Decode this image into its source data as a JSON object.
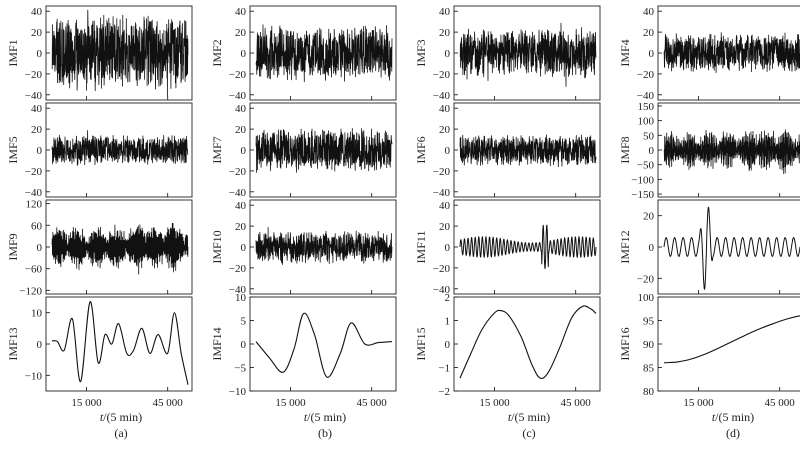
{
  "figure": {
    "xlabel": "t/(5 min)",
    "x_ticks": [
      "15 000",
      "45 000"
    ],
    "panel_labels": [
      "(a)",
      "(b)",
      "(c)",
      "(d)"
    ]
  },
  "chart_data": [
    {
      "type": "line",
      "col": 0,
      "row": 0,
      "ylabel": "IMF1",
      "ylim": [
        -45,
        45
      ],
      "yticks": [
        40,
        20,
        0,
        -20,
        -40
      ],
      "xticks": [
        15000,
        45000
      ],
      "series": [
        {
          "kind": "noise",
          "amp": 38,
          "cycles": 1800
        }
      ]
    },
    {
      "type": "line",
      "col": 1,
      "row": 0,
      "ylabel": "IMF2",
      "ylim": [
        -45,
        45
      ],
      "yticks": [
        40,
        20,
        0,
        -20,
        -40
      ],
      "xticks": [
        15000,
        45000
      ],
      "series": [
        {
          "kind": "noise",
          "amp": 28,
          "cycles": 1400
        }
      ]
    },
    {
      "type": "line",
      "col": 2,
      "row": 0,
      "ylabel": "IMF3",
      "ylim": [
        -45,
        45
      ],
      "yticks": [
        40,
        20,
        0,
        -20,
        -40
      ],
      "xticks": [
        15000,
        45000
      ],
      "series": [
        {
          "kind": "noise",
          "amp": 25,
          "cycles": 1000
        }
      ]
    },
    {
      "type": "line",
      "col": 3,
      "row": 0,
      "ylabel": "IMF4",
      "ylim": [
        -45,
        45
      ],
      "yticks": [
        40,
        20,
        0,
        -20,
        -40
      ],
      "xticks": [
        15000,
        45000
      ],
      "series": [
        {
          "kind": "noise",
          "amp": 20,
          "cycles": 700
        }
      ]
    },
    {
      "type": "line",
      "col": 0,
      "row": 1,
      "ylabel": "IMF5",
      "ylim": [
        -45,
        45
      ],
      "yticks": [
        40,
        20,
        0,
        -20,
        -40
      ],
      "xticks": [
        15000,
        45000
      ],
      "series": [
        {
          "kind": "noise",
          "amp": 16,
          "cycles": 500
        }
      ]
    },
    {
      "type": "line",
      "col": 1,
      "row": 1,
      "ylabel": "IMF7",
      "ylim": [
        -45,
        45
      ],
      "yticks": [
        40,
        20,
        0,
        -20,
        -40
      ],
      "xticks": [
        15000,
        45000
      ],
      "series": [
        {
          "kind": "noise",
          "amp": 22,
          "cycles": 360
        }
      ]
    },
    {
      "type": "line",
      "col": 2,
      "row": 1,
      "ylabel": "IMF6",
      "ylim": [
        -45,
        45
      ],
      "yticks": [
        40,
        20,
        0,
        -20,
        -40
      ],
      "xticks": [
        15000,
        45000
      ],
      "series": [
        {
          "kind": "noise",
          "amp": 16,
          "cycles": 420
        }
      ]
    },
    {
      "type": "line",
      "col": 3,
      "row": 1,
      "ylabel": "IMF8",
      "ylim": [
        -160,
        160
      ],
      "yticks": [
        150,
        100,
        50,
        0,
        -50,
        -100,
        -150
      ],
      "xticks": [
        15000,
        45000
      ],
      "series": [
        {
          "kind": "bursty",
          "amp": 65,
          "cycles": 260
        }
      ]
    },
    {
      "type": "line",
      "col": 0,
      "row": 2,
      "ylabel": "IMF9",
      "ylim": [
        -130,
        130
      ],
      "yticks": [
        120,
        60,
        0,
        -60,
        -120
      ],
      "xticks": [
        15000,
        45000
      ],
      "series": [
        {
          "kind": "bursty",
          "amp": 55,
          "cycles": 180
        }
      ]
    },
    {
      "type": "line",
      "col": 1,
      "row": 2,
      "ylabel": "IMF10",
      "ylim": [
        -45,
        45
      ],
      "yticks": [
        40,
        20,
        0,
        -20,
        -40
      ],
      "xticks": [
        15000,
        45000
      ],
      "series": [
        {
          "kind": "noise",
          "amp": 16,
          "cycles": 110
        }
      ]
    },
    {
      "type": "line",
      "col": 2,
      "row": 2,
      "ylabel": "IMF11",
      "ylim": [
        -45,
        45
      ],
      "yticks": [
        40,
        20,
        0,
        -20,
        -40
      ],
      "xticks": [
        15000,
        45000
      ],
      "series": [
        {
          "kind": "osc",
          "amp": 10,
          "cycles": 38
        }
      ]
    },
    {
      "type": "line",
      "col": 3,
      "row": 2,
      "ylabel": "IMF12",
      "ylim": [
        -30,
        30
      ],
      "yticks": [
        20,
        0,
        -20
      ],
      "xticks": [
        15000,
        45000
      ],
      "series": [
        {
          "kind": "osc12",
          "amp": 6,
          "cycles": 16
        }
      ]
    },
    {
      "type": "line",
      "col": 0,
      "row": 3,
      "ylabel": "IMF13",
      "ylim": [
        -15,
        15
      ],
      "yticks": [
        10,
        0,
        -10
      ],
      "xticks": [
        15000,
        45000
      ],
      "series": [
        {
          "kind": "pts",
          "points": [
            [
              0,
              1
            ],
            [
              0.04,
              0.8
            ],
            [
              0.09,
              -2
            ],
            [
              0.15,
              8
            ],
            [
              0.21,
              -12
            ],
            [
              0.28,
              13.5
            ],
            [
              0.34,
              -6
            ],
            [
              0.39,
              3
            ],
            [
              0.44,
              0
            ],
            [
              0.49,
              6.5
            ],
            [
              0.55,
              -3
            ],
            [
              0.6,
              -2
            ],
            [
              0.66,
              5
            ],
            [
              0.72,
              -3
            ],
            [
              0.78,
              3
            ],
            [
              0.85,
              -3
            ],
            [
              0.9,
              10
            ],
            [
              0.95,
              -3
            ],
            [
              1,
              -13
            ]
          ]
        }
      ]
    },
    {
      "type": "line",
      "col": 1,
      "row": 3,
      "ylabel": "IMF14",
      "ylim": [
        -10,
        10
      ],
      "yticks": [
        10,
        5,
        0,
        -5,
        -10
      ],
      "xticks": [
        15000,
        45000
      ],
      "series": [
        {
          "kind": "pts",
          "points": [
            [
              0,
              0.5
            ],
            [
              0.1,
              -3
            ],
            [
              0.2,
              -6
            ],
            [
              0.28,
              -1
            ],
            [
              0.35,
              6.5
            ],
            [
              0.43,
              2
            ],
            [
              0.52,
              -7
            ],
            [
              0.62,
              -2
            ],
            [
              0.7,
              4.5
            ],
            [
              0.8,
              0
            ],
            [
              0.9,
              0.3
            ],
            [
              1,
              0.5
            ]
          ]
        }
      ]
    },
    {
      "type": "line",
      "col": 2,
      "row": 3,
      "ylabel": "IMF15",
      "ylim": [
        -2,
        2
      ],
      "yticks": [
        2,
        1,
        0,
        -1,
        -2
      ],
      "xticks": [
        15000,
        45000
      ],
      "series": [
        {
          "kind": "pts",
          "points": [
            [
              0,
              -1.45
            ],
            [
              0.08,
              -0.4
            ],
            [
              0.16,
              0.6
            ],
            [
              0.25,
              1.3
            ],
            [
              0.3,
              1.42
            ],
            [
              0.36,
              1.2
            ],
            [
              0.45,
              0.3
            ],
            [
              0.53,
              -0.9
            ],
            [
              0.59,
              -1.45
            ],
            [
              0.65,
              -1.2
            ],
            [
              0.73,
              -0.2
            ],
            [
              0.82,
              1.1
            ],
            [
              0.9,
              1.6
            ],
            [
              0.96,
              1.5
            ],
            [
              1,
              1.3
            ]
          ]
        }
      ]
    },
    {
      "type": "line",
      "col": 3,
      "row": 3,
      "ylabel": "IMF16",
      "ylim": [
        80,
        100
      ],
      "yticks": [
        100,
        95,
        90,
        85,
        80
      ],
      "xticks": [
        15000,
        45000
      ],
      "series": [
        {
          "kind": "pts",
          "points": [
            [
              0,
              86
            ],
            [
              0.1,
              86.2
            ],
            [
              0.2,
              86.8
            ],
            [
              0.3,
              87.8
            ],
            [
              0.4,
              89.1
            ],
            [
              0.5,
              90.5
            ],
            [
              0.6,
              91.9
            ],
            [
              0.7,
              93.2
            ],
            [
              0.8,
              94.3
            ],
            [
              0.9,
              95.3
            ],
            [
              1,
              96
            ]
          ]
        }
      ]
    }
  ]
}
